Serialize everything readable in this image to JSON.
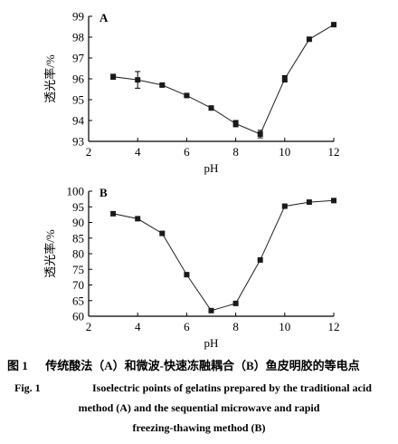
{
  "chart_data": [
    {
      "type": "line",
      "panel_label": "A",
      "xlabel": "pH",
      "ylabel": "透光率/%",
      "xlim": [
        2,
        12
      ],
      "ylim": [
        93,
        99
      ],
      "xticks": [
        2,
        4,
        6,
        8,
        10,
        12
      ],
      "yticks": [
        93,
        94,
        95,
        96,
        97,
        98,
        99
      ],
      "x": [
        3,
        4,
        5,
        6,
        7,
        8,
        9,
        10,
        11,
        12
      ],
      "y": [
        96.1,
        95.95,
        95.7,
        95.2,
        94.6,
        93.85,
        93.35,
        96.0,
        97.9,
        98.6
      ],
      "error": [
        0.12,
        0.4,
        0.05,
        0.05,
        0.05,
        0.15,
        0.18,
        0.15,
        0.05,
        0.05
      ]
    },
    {
      "type": "line",
      "panel_label": "B",
      "xlabel": "pH",
      "ylabel": "透光率/%",
      "xlim": [
        2,
        12
      ],
      "ylim": [
        60,
        100
      ],
      "xticks": [
        2,
        4,
        6,
        8,
        10,
        12
      ],
      "yticks": [
        60,
        65,
        70,
        75,
        80,
        85,
        90,
        95,
        100
      ],
      "x": [
        3,
        4,
        5,
        6,
        7,
        8,
        9,
        10,
        11,
        12
      ],
      "y": [
        92.8,
        91.2,
        86.5,
        73.3,
        61.8,
        64.1,
        78.0,
        95.2,
        96.5,
        97.0
      ]
    }
  ],
  "caption": {
    "cn_number": "图 1",
    "cn_text": "传统酸法（A）和微波-快速冻融耦合（B）鱼皮明胶的等电点",
    "en_number": "Fig. 1",
    "en_line1": "Isoelectric points of gelatins prepared by the traditional acid",
    "en_line2": "method (A) and the  sequential microwave and rapid",
    "en_line3": "freezing-thawing method (B)"
  }
}
